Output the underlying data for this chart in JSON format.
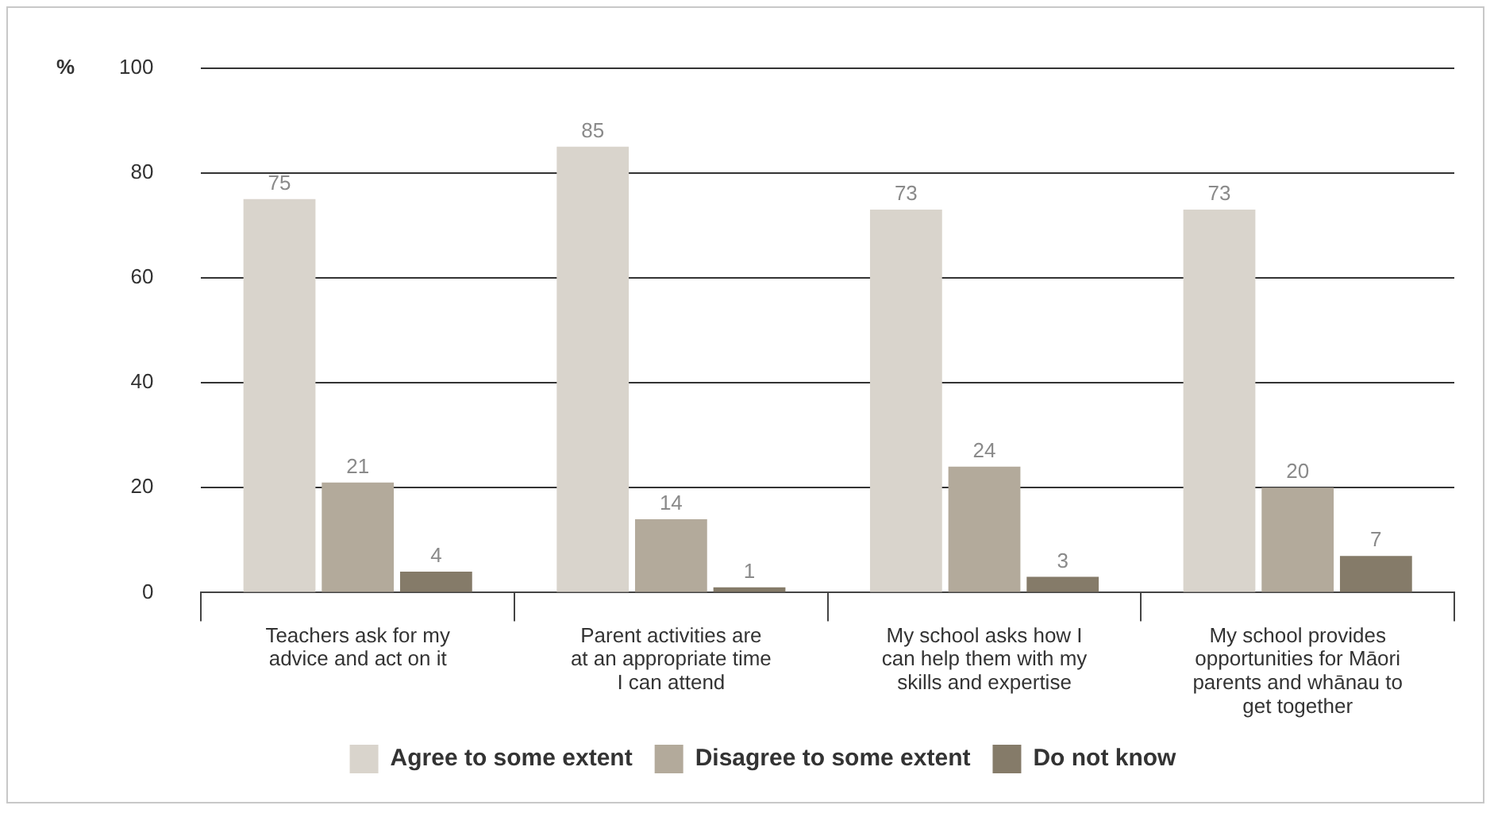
{
  "chart_data": {
    "type": "bar",
    "ylabel": "%",
    "categories": [
      "Teachers ask for my advice and act on it",
      "Parent activities are at an appropriate time I can attend",
      "My school asks how I can help them with my skills and expertise",
      "My school provides opportunities for Māori parents and whānau to get together"
    ],
    "series": [
      {
        "name": "Agree to some extent",
        "color": "#d9d4cc",
        "values": [
          75,
          85,
          73,
          73
        ]
      },
      {
        "name": "Disagree to some extent",
        "color": "#b3aa9b",
        "values": [
          21,
          14,
          24,
          20
        ]
      },
      {
        "name": "Do not know",
        "color": "#857b69",
        "values": [
          4,
          1,
          3,
          7
        ]
      }
    ],
    "ylim": [
      0,
      100
    ],
    "yticks": [
      0,
      20,
      40,
      60,
      80,
      100
    ],
    "grid": "y",
    "legend": "bottom",
    "data_labels": true
  }
}
